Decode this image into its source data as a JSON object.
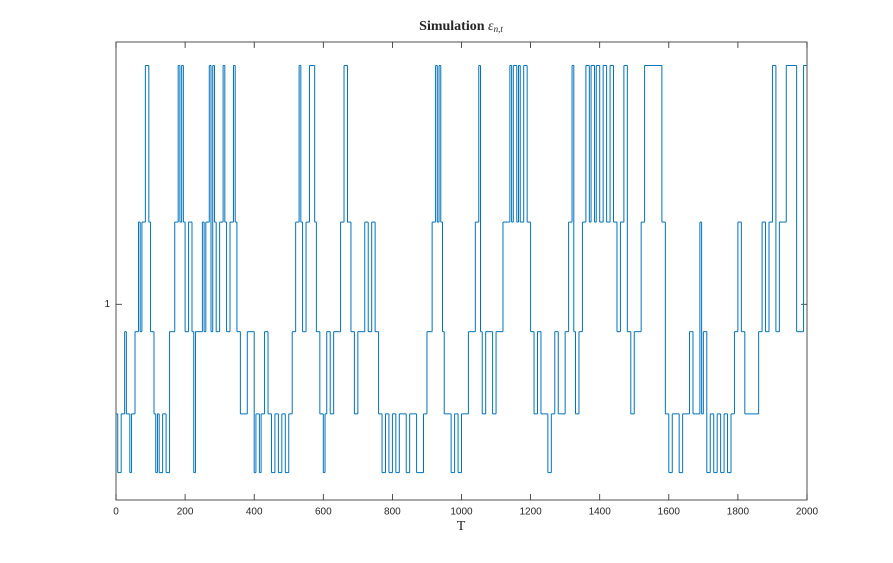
{
  "chart_data": {
    "type": "line",
    "drawstyle": "steps-post",
    "title": "Simulation",
    "title_symbol": "ε",
    "title_subscript": "n,t",
    "xlabel": "T",
    "xlim": [
      0,
      2000
    ],
    "xticks": [
      0,
      200,
      400,
      600,
      800,
      1000,
      1200,
      1400,
      1600,
      1800,
      2000
    ],
    "ylim": [
      0.5,
      1.67
    ],
    "yticks": [
      1
    ],
    "grid": false,
    "box": true,
    "series": [
      {
        "color": "#0072bd",
        "x": [
          0,
          5,
          15,
          25,
          30,
          40,
          45,
          55,
          65,
          70,
          75,
          85,
          95,
          100,
          110,
          115,
          120,
          125,
          135,
          145,
          155,
          170,
          180,
          185,
          190,
          195,
          200,
          210,
          220,
          225,
          230,
          250,
          255,
          260,
          270,
          275,
          280,
          285,
          290,
          300,
          310,
          315,
          320,
          330,
          340,
          345,
          350,
          360,
          380,
          400,
          405,
          415,
          420,
          430,
          440,
          450,
          460,
          470,
          480,
          490,
          500,
          510,
          520,
          530,
          535,
          540,
          550,
          560,
          575,
          580,
          590,
          600,
          605,
          610,
          620,
          630,
          650,
          660,
          670,
          680,
          690,
          700,
          720,
          730,
          740,
          750,
          760,
          770,
          780,
          790,
          800,
          810,
          820,
          840,
          850,
          870,
          890,
          900,
          915,
          925,
          930,
          935,
          940,
          945,
          950,
          970,
          980,
          990,
          1000,
          1020,
          1040,
          1050,
          1055,
          1060,
          1070,
          1090,
          1100,
          1120,
          1140,
          1145,
          1150,
          1160,
          1165,
          1170,
          1180,
          1190,
          1200,
          1210,
          1220,
          1230,
          1250,
          1260,
          1270,
          1280,
          1300,
          1310,
          1320,
          1325,
          1330,
          1340,
          1350,
          1360,
          1370,
          1375,
          1385,
          1390,
          1400,
          1410,
          1420,
          1430,
          1440,
          1450,
          1460,
          1470,
          1480,
          1490,
          1500,
          1520,
          1530,
          1580,
          1590,
          1600,
          1610,
          1630,
          1640,
          1660,
          1670,
          1690,
          1695,
          1700,
          1710,
          1720,
          1730,
          1740,
          1750,
          1760,
          1770,
          1780,
          1790,
          1800,
          1810,
          1820,
          1860,
          1870,
          1880,
          1890,
          1900,
          1910,
          1920,
          1940,
          1970,
          1990,
          2000
        ],
        "values": [
          0.72,
          0.57,
          0.72,
          0.93,
          0.72,
          0.57,
          0.72,
          0.93,
          1.21,
          0.93,
          1.21,
          1.61,
          1.21,
          0.93,
          0.72,
          0.57,
          0.72,
          0.57,
          0.72,
          0.57,
          0.93,
          1.21,
          1.61,
          1.21,
          1.61,
          1.21,
          0.93,
          1.21,
          0.93,
          0.57,
          0.93,
          1.21,
          0.93,
          1.21,
          1.61,
          0.93,
          1.61,
          1.21,
          0.93,
          1.21,
          1.61,
          1.21,
          0.93,
          1.21,
          1.61,
          1.21,
          0.93,
          0.72,
          0.93,
          0.57,
          0.72,
          0.57,
          0.72,
          0.93,
          0.72,
          0.57,
          0.72,
          0.57,
          0.72,
          0.57,
          0.72,
          0.93,
          1.21,
          1.61,
          1.21,
          0.93,
          1.21,
          1.61,
          1.21,
          0.93,
          0.72,
          0.57,
          0.72,
          0.93,
          0.72,
          0.93,
          1.21,
          1.61,
          1.21,
          0.93,
          0.72,
          0.93,
          1.21,
          0.93,
          1.21,
          0.93,
          0.72,
          0.57,
          0.72,
          0.57,
          0.72,
          0.57,
          0.72,
          0.57,
          0.72,
          0.57,
          0.72,
          0.93,
          1.21,
          1.61,
          1.21,
          1.61,
          1.21,
          0.93,
          0.72,
          0.57,
          0.72,
          0.57,
          0.72,
          0.93,
          1.21,
          1.61,
          0.93,
          0.72,
          0.93,
          0.72,
          0.93,
          1.21,
          1.61,
          1.21,
          1.61,
          1.21,
          1.61,
          1.21,
          1.61,
          1.21,
          0.93,
          0.72,
          0.93,
          0.72,
          0.57,
          0.72,
          0.93,
          0.72,
          0.93,
          1.21,
          1.61,
          0.93,
          0.72,
          0.93,
          1.21,
          1.61,
          1.21,
          1.61,
          1.21,
          1.61,
          1.21,
          1.61,
          1.21,
          1.61,
          1.21,
          0.93,
          1.21,
          1.61,
          0.93,
          0.72,
          0.93,
          1.21,
          1.61,
          1.21,
          0.72,
          0.57,
          0.72,
          0.57,
          0.72,
          0.93,
          0.72,
          1.21,
          0.72,
          0.93,
          0.57,
          0.72,
          0.57,
          0.72,
          0.57,
          0.72,
          0.57,
          0.72,
          0.93,
          1.21,
          0.93,
          0.72,
          0.93,
          1.21,
          0.93,
          1.21,
          1.61,
          0.93,
          1.21,
          1.61,
          0.93,
          1.61,
          1.61
        ]
      }
    ]
  }
}
